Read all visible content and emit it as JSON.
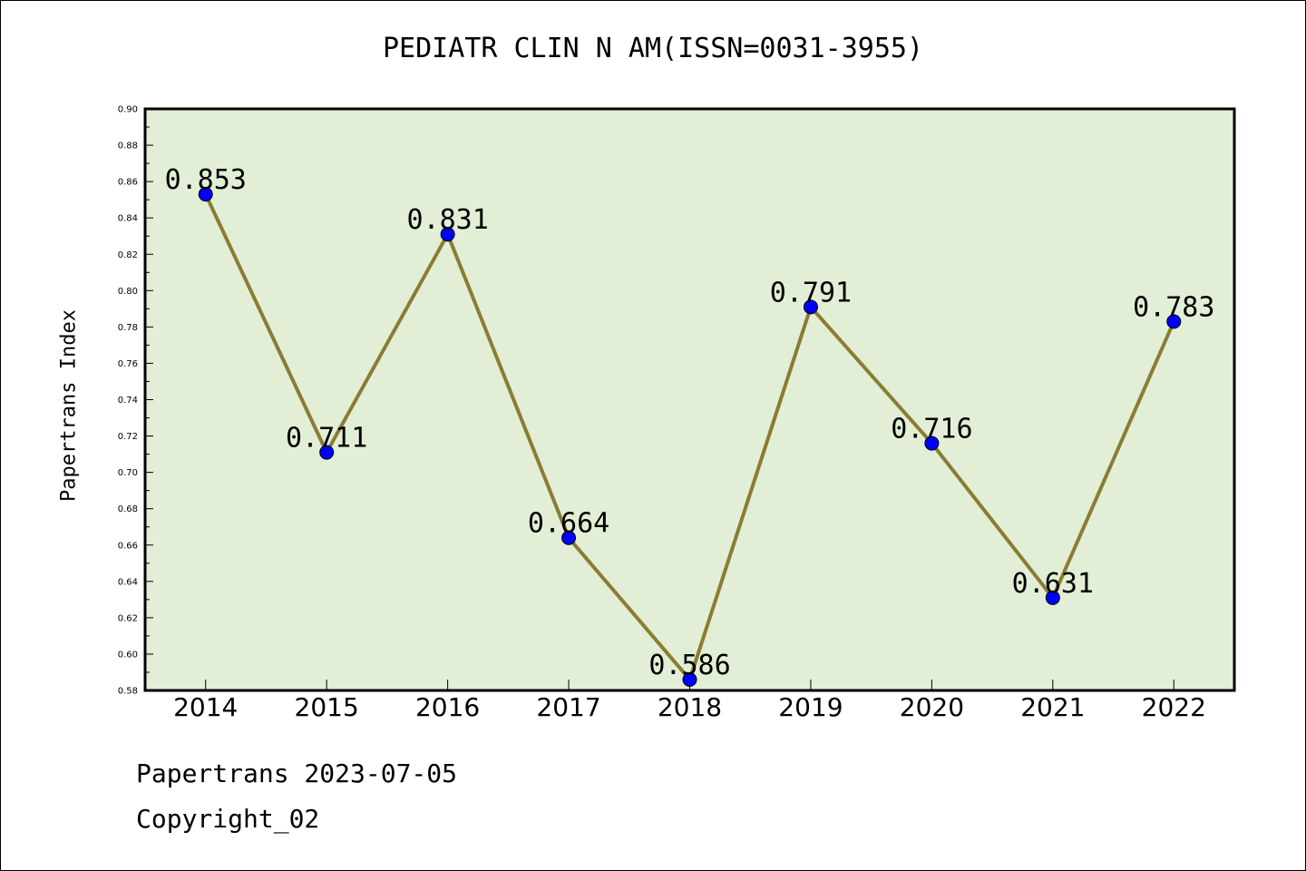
{
  "title": "PEDIATR CLIN N AM(ISSN=0031-3955)",
  "footer": {
    "line1": "Papertrans 2023-07-05",
    "line2": "Copyright_02"
  },
  "colors": {
    "plot_background": "#e2efd6",
    "line": "#8b7c33",
    "marker": "#0000ff"
  },
  "chart_data": {
    "type": "line",
    "title": "PEDIATR CLIN N AM(ISSN=0031-3955)",
    "xlabel": "",
    "ylabel": "Papertrans Index",
    "categories": [
      "2014",
      "2015",
      "2016",
      "2017",
      "2018",
      "2019",
      "2020",
      "2021",
      "2022"
    ],
    "values": [
      0.853,
      0.711,
      0.831,
      0.664,
      0.586,
      0.791,
      0.716,
      0.631,
      0.783
    ],
    "data_labels": [
      "0.853",
      "0.711",
      "0.831",
      "0.664",
      "0.586",
      "0.791",
      "0.716",
      "0.631",
      "0.783"
    ],
    "ylim": [
      0.58,
      0.9
    ],
    "yticks": [
      "0.58",
      "0.60",
      "0.62",
      "0.64",
      "0.66",
      "0.68",
      "0.70",
      "0.72",
      "0.74",
      "0.76",
      "0.78",
      "0.80",
      "0.82",
      "0.84",
      "0.86",
      "0.88",
      "0.90"
    ],
    "grid": false,
    "legend": false
  }
}
